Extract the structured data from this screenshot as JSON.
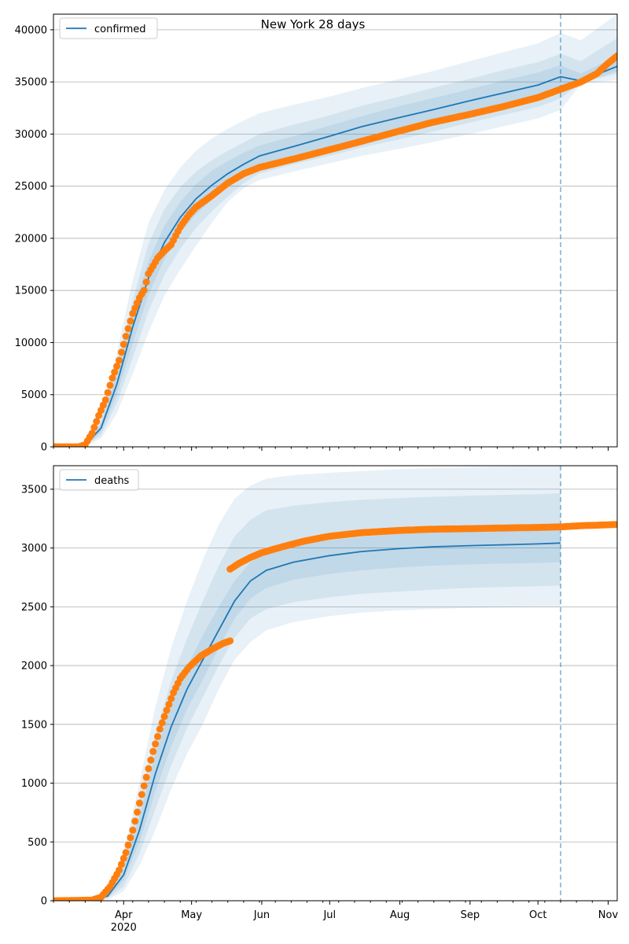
{
  "title": "New York 28 days",
  "x_axis": {
    "month_labels": [
      "Apr",
      "May",
      "Jun",
      "Jul",
      "Aug",
      "Sep",
      "Oct",
      "Nov"
    ],
    "year_label": "2020"
  },
  "chart_data": [
    {
      "type": "line",
      "legend": "confirmed",
      "legend_position": "top-left",
      "grid": "horizontal",
      "x_range": [
        "2020-03-01",
        "2020-11-05"
      ],
      "ylim": [
        0,
        41500
      ],
      "yticks": [
        0,
        5000,
        10000,
        15000,
        20000,
        25000,
        30000,
        35000,
        40000
      ],
      "ytick_labels": [
        "0",
        "5000",
        "10000",
        "15000",
        "20000",
        "25000",
        "30000",
        "35000",
        "40000"
      ],
      "forecast_start": "2020-10-11",
      "model_fit": {
        "x": [
          "2020-03-01",
          "2020-03-15",
          "2020-03-22",
          "2020-03-29",
          "2020-04-05",
          "2020-04-12",
          "2020-04-19",
          "2020-04-26",
          "2020-05-03",
          "2020-05-10",
          "2020-05-17",
          "2020-05-24",
          "2020-05-31",
          "2020-06-15",
          "2020-07-01",
          "2020-07-15",
          "2020-08-01",
          "2020-08-15",
          "2020-09-01",
          "2020-09-15",
          "2020-10-01",
          "2020-10-11",
          "2020-10-20",
          "2020-11-05"
        ],
        "y": [
          0,
          150,
          1800,
          6000,
          11500,
          16200,
          19600,
          22000,
          23800,
          25100,
          26200,
          27100,
          27900,
          28800,
          29800,
          30700,
          31600,
          32300,
          33200,
          33900,
          34700,
          35500,
          35100,
          36500
        ]
      },
      "bands": [
        {
          "label": "outer",
          "lower": [
            0,
            50,
            800,
            3200,
            7000,
            11000,
            14500,
            17000,
            19300,
            21500,
            23500,
            24800,
            25600,
            26400,
            27200,
            27900,
            28600,
            29200,
            30000,
            30700,
            31500,
            32300,
            34800,
            35200
          ],
          "upper": [
            0,
            400,
            3200,
            9000,
            16000,
            21500,
            24600,
            26800,
            28400,
            29600,
            30500,
            31300,
            32000,
            32800,
            33600,
            34400,
            35300,
            36000,
            37000,
            37800,
            38700,
            39700,
            39000,
            41500
          ]
        },
        {
          "label": "middle",
          "lower": [
            0,
            80,
            1100,
            4200,
            8500,
            13000,
            16500,
            19000,
            21000,
            22600,
            24000,
            25300,
            26200,
            27100,
            27900,
            28700,
            29500,
            30200,
            31100,
            31800,
            32600,
            33400,
            34900,
            35800
          ],
          "upper": [
            0,
            250,
            2500,
            7800,
            14000,
            19500,
            22800,
            24900,
            26400,
            27500,
            28400,
            29200,
            30000,
            30900,
            31800,
            32700,
            33600,
            34400,
            35300,
            36100,
            36900,
            37700,
            37000,
            39200
          ]
        },
        {
          "label": "inner",
          "lower": [
            0,
            110,
            1400,
            5000,
            9900,
            14600,
            18000,
            20500,
            22300,
            23700,
            24900,
            26000,
            26900,
            27800,
            28700,
            29500,
            30400,
            31100,
            32000,
            32700,
            33500,
            34400,
            34950,
            36000
          ],
          "upper": [
            0,
            190,
            2200,
            7000,
            13100,
            17800,
            21200,
            23500,
            25200,
            26500,
            27400,
            28200,
            28900,
            29800,
            30800,
            31700,
            32700,
            33400,
            34300,
            35100,
            35900,
            36600,
            35800,
            37500
          ]
        }
      ],
      "observed": {
        "x": [
          "2020-03-01",
          "2020-03-12",
          "2020-03-15",
          "2020-03-18",
          "2020-03-21",
          "2020-03-24",
          "2020-03-27",
          "2020-03-30",
          "2020-04-02",
          "2020-04-05",
          "2020-04-08",
          "2020-04-10",
          "2020-04-12",
          "2020-04-16",
          "2020-04-19",
          "2020-04-22",
          "2020-04-26",
          "2020-04-30",
          "2020-05-03",
          "2020-05-10",
          "2020-05-17",
          "2020-05-24",
          "2020-05-31",
          "2020-06-15",
          "2020-07-01",
          "2020-07-15",
          "2020-08-01",
          "2020-08-15",
          "2020-09-01",
          "2020-09-15",
          "2020-10-01",
          "2020-10-11",
          "2020-10-20",
          "2020-10-27",
          "2020-11-01",
          "2020-11-05"
        ],
        "y": [
          0,
          0,
          200,
          1300,
          3000,
          4500,
          6600,
          8300,
          10600,
          12800,
          14300,
          15000,
          16600,
          18100,
          18800,
          19400,
          21100,
          22300,
          23000,
          24100,
          25300,
          26200,
          26800,
          27600,
          28500,
          29300,
          30300,
          31100,
          31900,
          32600,
          33500,
          34300,
          35000,
          35800,
          36800,
          37500
        ]
      }
    },
    {
      "type": "line",
      "legend": "deaths",
      "legend_position": "top-left",
      "grid": "horizontal",
      "x_range": [
        "2020-03-01",
        "2020-11-05"
      ],
      "ylim": [
        0,
        3700
      ],
      "yticks": [
        0,
        500,
        1000,
        1500,
        2000,
        2500,
        3000,
        3500
      ],
      "ytick_labels": [
        "0",
        "500",
        "1000",
        "1500",
        "2000",
        "2500",
        "3000",
        "3500"
      ],
      "forecast_start": "2020-10-11",
      "model_fit": {
        "x": [
          "2020-03-01",
          "2020-03-18",
          "2020-03-25",
          "2020-04-01",
          "2020-04-08",
          "2020-04-15",
          "2020-04-22",
          "2020-04-29",
          "2020-05-06",
          "2020-05-13",
          "2020-05-20",
          "2020-05-27",
          "2020-06-03",
          "2020-06-15",
          "2020-07-01",
          "2020-07-15",
          "2020-08-01",
          "2020-08-15",
          "2020-09-01",
          "2020-09-15",
          "2020-10-01",
          "2020-10-11"
        ],
        "y": [
          0,
          0,
          40,
          220,
          600,
          1080,
          1480,
          1800,
          2050,
          2300,
          2550,
          2720,
          2810,
          2880,
          2935,
          2970,
          2995,
          3010,
          3020,
          3027,
          3035,
          3042
        ]
      },
      "bands": [
        {
          "label": "outer",
          "lower": [
            0,
            0,
            10,
            80,
            300,
            600,
            950,
            1250,
            1500,
            1800,
            2050,
            2200,
            2300,
            2370,
            2420,
            2450,
            2470,
            2480,
            2490,
            2495,
            2500,
            2500
          ],
          "upper": [
            0,
            10,
            90,
            420,
            1000,
            1650,
            2150,
            2550,
            2900,
            3200,
            3420,
            3530,
            3590,
            3620,
            3640,
            3655,
            3670,
            3680,
            3688,
            3693,
            3697,
            3700
          ]
        },
        {
          "label": "middle",
          "lower": [
            0,
            0,
            20,
            120,
            400,
            780,
            1150,
            1470,
            1730,
            2000,
            2240,
            2400,
            2480,
            2540,
            2580,
            2610,
            2630,
            2645,
            2660,
            2668,
            2675,
            2680
          ],
          "upper": [
            0,
            5,
            70,
            340,
            850,
            1420,
            1870,
            2230,
            2550,
            2850,
            3100,
            3240,
            3320,
            3360,
            3390,
            3410,
            3425,
            3435,
            3445,
            3452,
            3458,
            3465
          ]
        },
        {
          "label": "inner",
          "lower": [
            0,
            0,
            30,
            170,
            500,
            930,
            1310,
            1630,
            1880,
            2150,
            2400,
            2570,
            2660,
            2730,
            2780,
            2810,
            2835,
            2850,
            2860,
            2867,
            2873,
            2880
          ],
          "upper": [
            0,
            2,
            55,
            280,
            720,
            1250,
            1660,
            1990,
            2260,
            2500,
            2720,
            2880,
            2960,
            3020,
            3065,
            3095,
            3120,
            3135,
            3148,
            3155,
            3162,
            3168
          ]
        }
      ],
      "observed": {
        "x": [
          "2020-03-01",
          "2020-03-18",
          "2020-03-22",
          "2020-03-26",
          "2020-03-30",
          "2020-04-02",
          "2020-04-05",
          "2020-04-08",
          "2020-04-11",
          "2020-04-14",
          "2020-04-17",
          "2020-04-20",
          "2020-04-23",
          "2020-04-26",
          "2020-04-30",
          "2020-05-05",
          "2020-05-10",
          "2020-05-15",
          "2020-05-18",
          "2020-05-18",
          "2020-05-22",
          "2020-05-27",
          "2020-06-01",
          "2020-06-10",
          "2020-06-20",
          "2020-07-01",
          "2020-07-15",
          "2020-08-01",
          "2020-08-15",
          "2020-09-01",
          "2020-09-15",
          "2020-10-01",
          "2020-10-11",
          "2020-10-20",
          "2020-11-05"
        ],
        "y": [
          0,
          5,
          30,
          120,
          260,
          410,
          600,
          830,
          1050,
          1270,
          1460,
          1620,
          1770,
          1890,
          1990,
          2080,
          2140,
          2190,
          2210,
          2820,
          2870,
          2920,
          2960,
          3010,
          3060,
          3100,
          3130,
          3150,
          3160,
          3165,
          3170,
          3175,
          3180,
          3190,
          3200
        ]
      }
    }
  ]
}
